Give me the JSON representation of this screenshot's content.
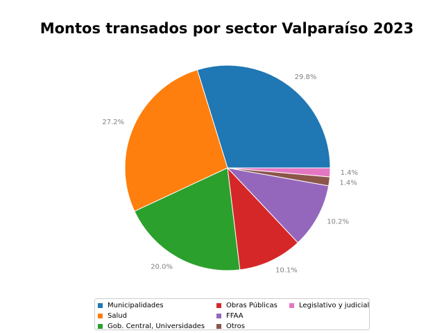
{
  "chart_data": {
    "type": "pie",
    "title": "Montos transados por sector Valparaíso 2023",
    "slices": [
      {
        "label": "Municipalidades",
        "value": 29.8,
        "pct_label": "29.8%",
        "color": "#1f77b4"
      },
      {
        "label": "Salud",
        "value": 27.2,
        "pct_label": "27.2%",
        "color": "#ff7f0e"
      },
      {
        "label": "Gob. Central, Universidades",
        "value": 20.0,
        "pct_label": "20.0%",
        "color": "#2ca02c"
      },
      {
        "label": "Obras Públicas",
        "value": 10.1,
        "pct_label": "10.1%",
        "color": "#d62728"
      },
      {
        "label": "FFAA",
        "value": 10.2,
        "pct_label": "10.2%",
        "color": "#9467bd"
      },
      {
        "label": "Otros",
        "value": 1.4,
        "pct_label": "1.4%",
        "color": "#8c564b"
      },
      {
        "label": "Legislativo y judicial",
        "value": 1.4,
        "pct_label": "1.4%",
        "color": "#e377c2"
      }
    ],
    "start_angle_deg": 0,
    "direction": "counterclockwise",
    "legend_position": "bottom",
    "legend_columns": 3
  }
}
